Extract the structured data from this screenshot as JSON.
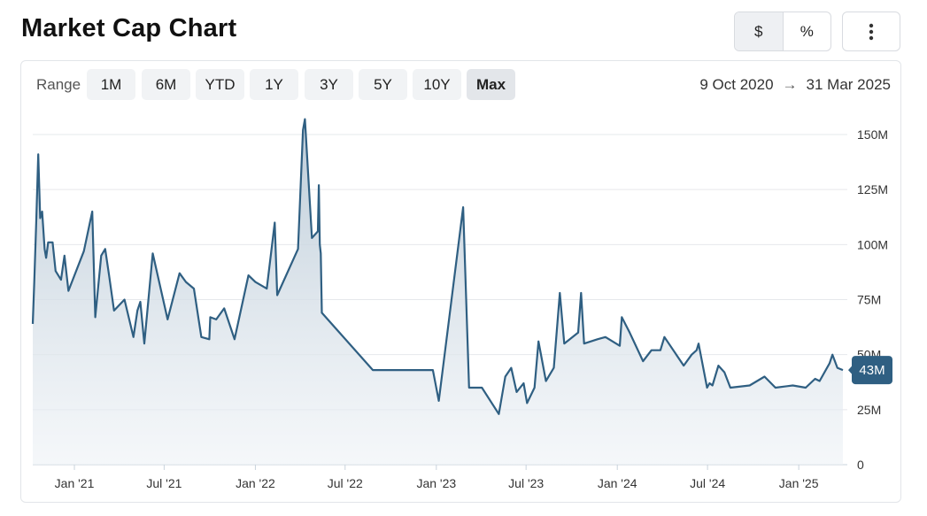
{
  "header": {
    "title": "Market Cap Chart",
    "toggle": [
      {
        "label": "$",
        "active": true
      },
      {
        "label": "%",
        "active": false
      }
    ],
    "menu_icon": "more-vertical-icon"
  },
  "controls": {
    "range_label": "Range",
    "ranges": [
      {
        "label": "1M",
        "active": false
      },
      {
        "label": "6M",
        "active": false
      },
      {
        "label": "YTD",
        "active": false
      },
      {
        "label": "1Y",
        "active": false
      },
      {
        "label": "3Y",
        "active": false
      },
      {
        "label": "5Y",
        "active": false
      },
      {
        "label": "10Y",
        "active": false
      },
      {
        "label": "Max",
        "active": true
      }
    ],
    "date_from": "9 Oct 2020",
    "arrow": "→",
    "date_to": "31 Mar 2025"
  },
  "chart_data": {
    "type": "area",
    "x_start": "2020-10-09",
    "x_end": "2025-03-31",
    "ylim": [
      0,
      160
    ],
    "y_unit": "M",
    "yticks": [
      {
        "value": 0,
        "label": "0"
      },
      {
        "value": 25,
        "label": "25M"
      },
      {
        "value": 50,
        "label": "50M"
      },
      {
        "value": 75,
        "label": "75M"
      },
      {
        "value": 100,
        "label": "100M"
      },
      {
        "value": 125,
        "label": "125M"
      },
      {
        "value": 150,
        "label": "150M"
      }
    ],
    "xticks": [
      {
        "date": "2021-01-01",
        "label": "Jan '21"
      },
      {
        "date": "2021-07-01",
        "label": "Jul '21"
      },
      {
        "date": "2022-01-01",
        "label": "Jan '22"
      },
      {
        "date": "2022-07-01",
        "label": "Jul '22"
      },
      {
        "date": "2023-01-01",
        "label": "Jan '23"
      },
      {
        "date": "2023-07-01",
        "label": "Jul '23"
      },
      {
        "date": "2024-01-01",
        "label": "Jan '24"
      },
      {
        "date": "2024-07-01",
        "label": "Jul '24"
      },
      {
        "date": "2025-01-01",
        "label": "Jan '25"
      }
    ],
    "grid": true,
    "line_color": "#2f5f82",
    "last_value_label": "43M",
    "points": [
      [
        "2020-10-09",
        64
      ],
      [
        "2020-10-12",
        83
      ],
      [
        "2020-10-16",
        110
      ],
      [
        "2020-10-20",
        141
      ],
      [
        "2020-10-24",
        112
      ],
      [
        "2020-10-28",
        115
      ],
      [
        "2020-11-02",
        98
      ],
      [
        "2020-11-05",
        94
      ],
      [
        "2020-11-09",
        101
      ],
      [
        "2020-11-18",
        101
      ],
      [
        "2020-11-24",
        88
      ],
      [
        "2020-12-05",
        84
      ],
      [
        "2020-12-12",
        95
      ],
      [
        "2020-12-20",
        79
      ],
      [
        "2021-01-20",
        97
      ],
      [
        "2021-02-06",
        115
      ],
      [
        "2021-02-12",
        67
      ],
      [
        "2021-02-24",
        95
      ],
      [
        "2021-03-04",
        98
      ],
      [
        "2021-03-12",
        86
      ],
      [
        "2021-03-22",
        70
      ],
      [
        "2021-04-12",
        75
      ],
      [
        "2021-04-30",
        58
      ],
      [
        "2021-05-08",
        70
      ],
      [
        "2021-05-14",
        74
      ],
      [
        "2021-05-22",
        55
      ],
      [
        "2021-06-08",
        96
      ],
      [
        "2021-07-08",
        66
      ],
      [
        "2021-08-01",
        87
      ],
      [
        "2021-08-14",
        83
      ],
      [
        "2021-08-30",
        80
      ],
      [
        "2021-09-14",
        58
      ],
      [
        "2021-09-30",
        57
      ],
      [
        "2021-10-02",
        67
      ],
      [
        "2021-10-14",
        66
      ],
      [
        "2021-10-30",
        71
      ],
      [
        "2021-11-20",
        57
      ],
      [
        "2021-12-18",
        86
      ],
      [
        "2022-01-01",
        83
      ],
      [
        "2022-01-24",
        80
      ],
      [
        "2022-02-09",
        110
      ],
      [
        "2022-02-14",
        77
      ],
      [
        "2022-03-28",
        98
      ],
      [
        "2022-04-07",
        152
      ],
      [
        "2022-04-11",
        157
      ],
      [
        "2022-04-25",
        103
      ],
      [
        "2022-05-07",
        106
      ],
      [
        "2022-05-09",
        127
      ],
      [
        "2022-05-11",
        100
      ],
      [
        "2022-05-13",
        96
      ],
      [
        "2022-05-15",
        69
      ],
      [
        "2022-08-26",
        43
      ],
      [
        "2022-12-25",
        43
      ],
      [
        "2023-01-06",
        29
      ],
      [
        "2023-02-24",
        117
      ],
      [
        "2023-03-08",
        35
      ],
      [
        "2023-04-03",
        35
      ],
      [
        "2023-05-07",
        23
      ],
      [
        "2023-05-20",
        40
      ],
      [
        "2023-06-01",
        44
      ],
      [
        "2023-06-12",
        33
      ],
      [
        "2023-06-26",
        37
      ],
      [
        "2023-07-03",
        28
      ],
      [
        "2023-07-18",
        35
      ],
      [
        "2023-07-26",
        56
      ],
      [
        "2023-08-10",
        38
      ],
      [
        "2023-08-26",
        44
      ],
      [
        "2023-09-07",
        78
      ],
      [
        "2023-09-16",
        55
      ],
      [
        "2023-10-14",
        60
      ],
      [
        "2023-10-20",
        78
      ],
      [
        "2023-10-26",
        55
      ],
      [
        "2023-11-22",
        57
      ],
      [
        "2023-12-08",
        58
      ],
      [
        "2024-01-06",
        54
      ],
      [
        "2024-01-10",
        67
      ],
      [
        "2024-01-26",
        60
      ],
      [
        "2024-02-22",
        47
      ],
      [
        "2024-03-10",
        52
      ],
      [
        "2024-03-28",
        52
      ],
      [
        "2024-04-05",
        58
      ],
      [
        "2024-05-14",
        45
      ],
      [
        "2024-05-30",
        50
      ],
      [
        "2024-06-09",
        52
      ],
      [
        "2024-06-13",
        55
      ],
      [
        "2024-06-30",
        35
      ],
      [
        "2024-07-05",
        37
      ],
      [
        "2024-07-11",
        36
      ],
      [
        "2024-07-23",
        45
      ],
      [
        "2024-08-04",
        42
      ],
      [
        "2024-08-16",
        35
      ],
      [
        "2024-09-24",
        36
      ],
      [
        "2024-10-24",
        40
      ],
      [
        "2024-11-15",
        35
      ],
      [
        "2024-12-20",
        36
      ],
      [
        "2025-01-15",
        35
      ],
      [
        "2025-02-03",
        39
      ],
      [
        "2025-02-12",
        38
      ],
      [
        "2025-03-04",
        46
      ],
      [
        "2025-03-10",
        50
      ],
      [
        "2025-03-20",
        44
      ],
      [
        "2025-03-31",
        43
      ]
    ]
  }
}
